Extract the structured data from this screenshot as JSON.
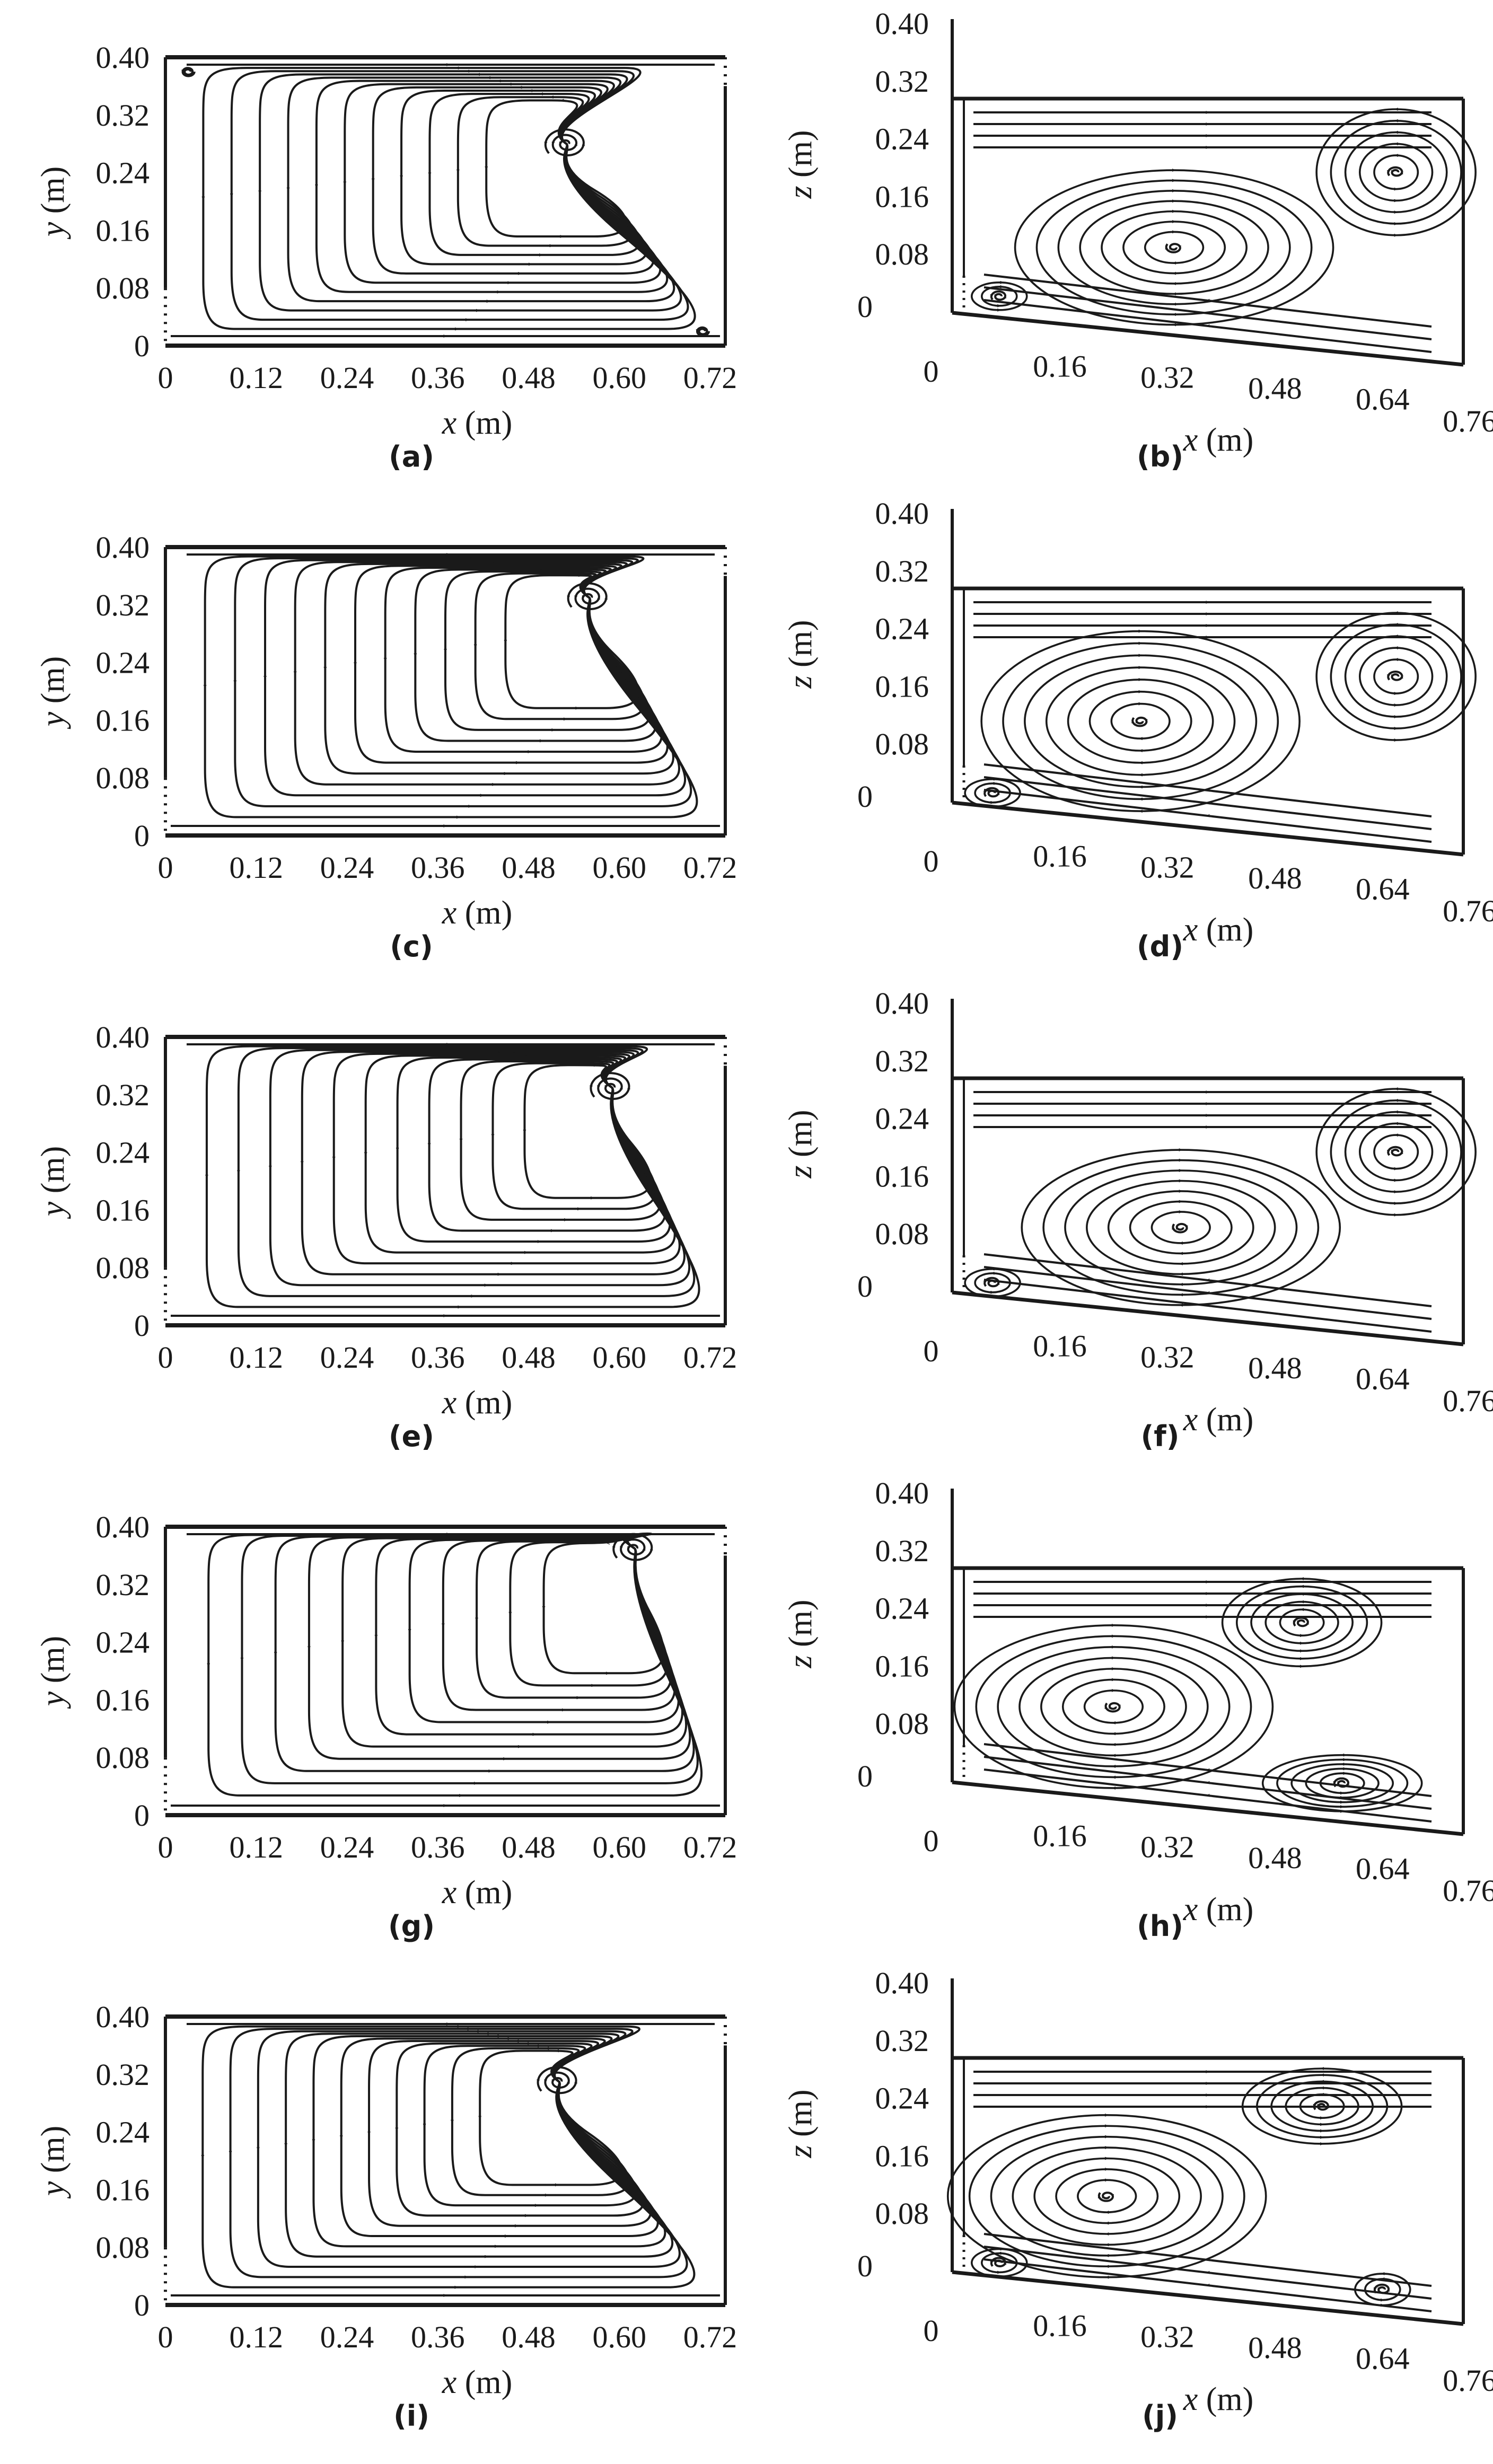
{
  "panels": [
    {
      "id": "a",
      "caption": "(a)",
      "kind": "top",
      "x_label": "x",
      "x_unit": " (m)",
      "y_label": "y",
      "y_unit": " (m)",
      "x_ticks": [
        "0",
        "0.12",
        "0.24",
        "0.36",
        "0.48",
        "0.60",
        "0.72"
      ],
      "y_ticks": [
        "0",
        "0.08",
        "0.16",
        "0.24",
        "0.32",
        "0.40"
      ],
      "vortices": [
        {
          "x": 0.53,
          "y": 0.28,
          "sense": "ccw",
          "kind": "saddle"
        },
        {
          "x": 0.03,
          "y": 0.38,
          "sense": "ccw",
          "kind": "corner"
        },
        {
          "x": 0.71,
          "y": 0.02,
          "sense": "ccw",
          "kind": "corner"
        }
      ]
    },
    {
      "id": "b",
      "caption": "(b)",
      "kind": "side",
      "x_label": "x",
      "x_unit": " (m)",
      "y_label": "z",
      "y_unit": " (m)",
      "x_ticks": [
        "0",
        "0.16",
        "0.32",
        "0.48",
        "0.64",
        "0.76"
      ],
      "y_ticks": [
        "0",
        "0.08",
        "0.16",
        "0.24",
        "0.32",
        "0.40"
      ],
      "vortices": [
        {
          "x": 0.33,
          "z": 0.12,
          "sense": "cw",
          "kind": "eddy"
        },
        {
          "x": 0.66,
          "z": 0.24,
          "sense": "ccw",
          "kind": "eddy"
        },
        {
          "x": 0.07,
          "z": 0.04,
          "sense": "ccw",
          "kind": "corner"
        }
      ]
    },
    {
      "id": "c",
      "caption": "(c)",
      "kind": "top",
      "x_label": "x",
      "x_unit": " (m)",
      "y_label": "y",
      "y_unit": " (m)",
      "x_ticks": [
        "0",
        "0.12",
        "0.24",
        "0.36",
        "0.48",
        "0.60",
        "0.72"
      ],
      "y_ticks": [
        "0",
        "0.08",
        "0.16",
        "0.24",
        "0.32",
        "0.40"
      ],
      "vortices": [
        {
          "x": 0.56,
          "y": 0.33,
          "sense": "ccw",
          "kind": "saddle"
        }
      ]
    },
    {
      "id": "d",
      "caption": "(d)",
      "kind": "side",
      "x_label": "x",
      "x_unit": " (m)",
      "y_label": "z",
      "y_unit": " (m)",
      "x_ticks": [
        "0",
        "0.16",
        "0.32",
        "0.48",
        "0.64",
        "0.76"
      ],
      "y_ticks": [
        "0",
        "0.08",
        "0.16",
        "0.24",
        "0.32",
        "0.40"
      ],
      "vortices": [
        {
          "x": 0.28,
          "z": 0.14,
          "sense": "cw",
          "kind": "eddy"
        },
        {
          "x": 0.66,
          "z": 0.22,
          "sense": "ccw",
          "kind": "eddy"
        },
        {
          "x": 0.06,
          "z": 0.03,
          "sense": "ccw",
          "kind": "corner"
        }
      ]
    },
    {
      "id": "e",
      "caption": "(e)",
      "kind": "top",
      "x_label": "x",
      "x_unit": " (m)",
      "y_label": "y",
      "y_unit": " (m)",
      "x_ticks": [
        "0",
        "0.12",
        "0.24",
        "0.36",
        "0.48",
        "0.60",
        "0.72"
      ],
      "y_ticks": [
        "0",
        "0.08",
        "0.16",
        "0.24",
        "0.32",
        "0.40"
      ],
      "vortices": [
        {
          "x": 0.59,
          "y": 0.33,
          "sense": "ccw",
          "kind": "saddle"
        }
      ]
    },
    {
      "id": "f",
      "caption": "(f)",
      "kind": "side",
      "x_label": "x",
      "x_unit": " (m)",
      "y_label": "z",
      "y_unit": " (m)",
      "x_ticks": [
        "0",
        "0.16",
        "0.32",
        "0.48",
        "0.64",
        "0.76"
      ],
      "y_ticks": [
        "0",
        "0.08",
        "0.16",
        "0.24",
        "0.32",
        "0.40"
      ],
      "vortices": [
        {
          "x": 0.34,
          "z": 0.12,
          "sense": "cw",
          "kind": "eddy"
        },
        {
          "x": 0.66,
          "z": 0.24,
          "sense": "ccw",
          "kind": "eddy"
        },
        {
          "x": 0.06,
          "z": 0.03,
          "sense": "ccw",
          "kind": "corner"
        }
      ]
    },
    {
      "id": "g",
      "caption": "(g)",
      "kind": "top",
      "x_label": "x",
      "x_unit": " (m)",
      "y_label": "y",
      "y_unit": " (m)",
      "x_ticks": [
        "0",
        "0.12",
        "0.24",
        "0.36",
        "0.48",
        "0.60",
        "0.72"
      ],
      "y_ticks": [
        "0",
        "0.08",
        "0.16",
        "0.24",
        "0.32",
        "0.40"
      ],
      "vortices": [
        {
          "x": 0.62,
          "y": 0.37,
          "sense": "ccw",
          "kind": "eddy"
        }
      ]
    },
    {
      "id": "h",
      "caption": "(h)",
      "kind": "side",
      "x_label": "x",
      "x_unit": " (m)",
      "y_label": "z",
      "y_unit": " (m)",
      "x_ticks": [
        "0",
        "0.16",
        "0.32",
        "0.48",
        "0.64",
        "0.76"
      ],
      "y_ticks": [
        "0",
        "0.08",
        "0.16",
        "0.24",
        "0.32",
        "0.40"
      ],
      "vortices": [
        {
          "x": 0.24,
          "z": 0.13,
          "sense": "cw",
          "kind": "eddy"
        },
        {
          "x": 0.52,
          "z": 0.26,
          "sense": "ccw",
          "kind": "eddy"
        },
        {
          "x": 0.58,
          "z": 0.04,
          "sense": "ccw",
          "kind": "eddy"
        }
      ]
    },
    {
      "id": "i",
      "caption": "(i)",
      "kind": "top",
      "x_label": "x",
      "x_unit": " (m)",
      "y_label": "y",
      "y_unit": " (m)",
      "x_ticks": [
        "0",
        "0.12",
        "0.24",
        "0.36",
        "0.48",
        "0.60",
        "0.72"
      ],
      "y_ticks": [
        "0",
        "0.08",
        "0.16",
        "0.24",
        "0.32",
        "0.40"
      ],
      "vortices": [
        {
          "x": 0.52,
          "y": 0.31,
          "sense": "ccw",
          "kind": "eddy"
        }
      ]
    },
    {
      "id": "j",
      "caption": "(j)",
      "kind": "side",
      "x_label": "x",
      "x_unit": " (m)",
      "y_label": "z",
      "y_unit": " (m)",
      "x_ticks": [
        "0",
        "0.16",
        "0.32",
        "0.48",
        "0.64",
        "0.76"
      ],
      "y_ticks": [
        "0",
        "0.08",
        "0.16",
        "0.24",
        "0.32",
        "0.40"
      ],
      "vortices": [
        {
          "x": 0.23,
          "z": 0.13,
          "sense": "cw",
          "kind": "eddy"
        },
        {
          "x": 0.55,
          "z": 0.27,
          "sense": "ccw",
          "kind": "eddy"
        },
        {
          "x": 0.07,
          "z": 0.03,
          "sense": "ccw",
          "kind": "corner"
        },
        {
          "x": 0.64,
          "z": 0.02,
          "sense": "ccw",
          "kind": "corner"
        }
      ]
    }
  ]
}
